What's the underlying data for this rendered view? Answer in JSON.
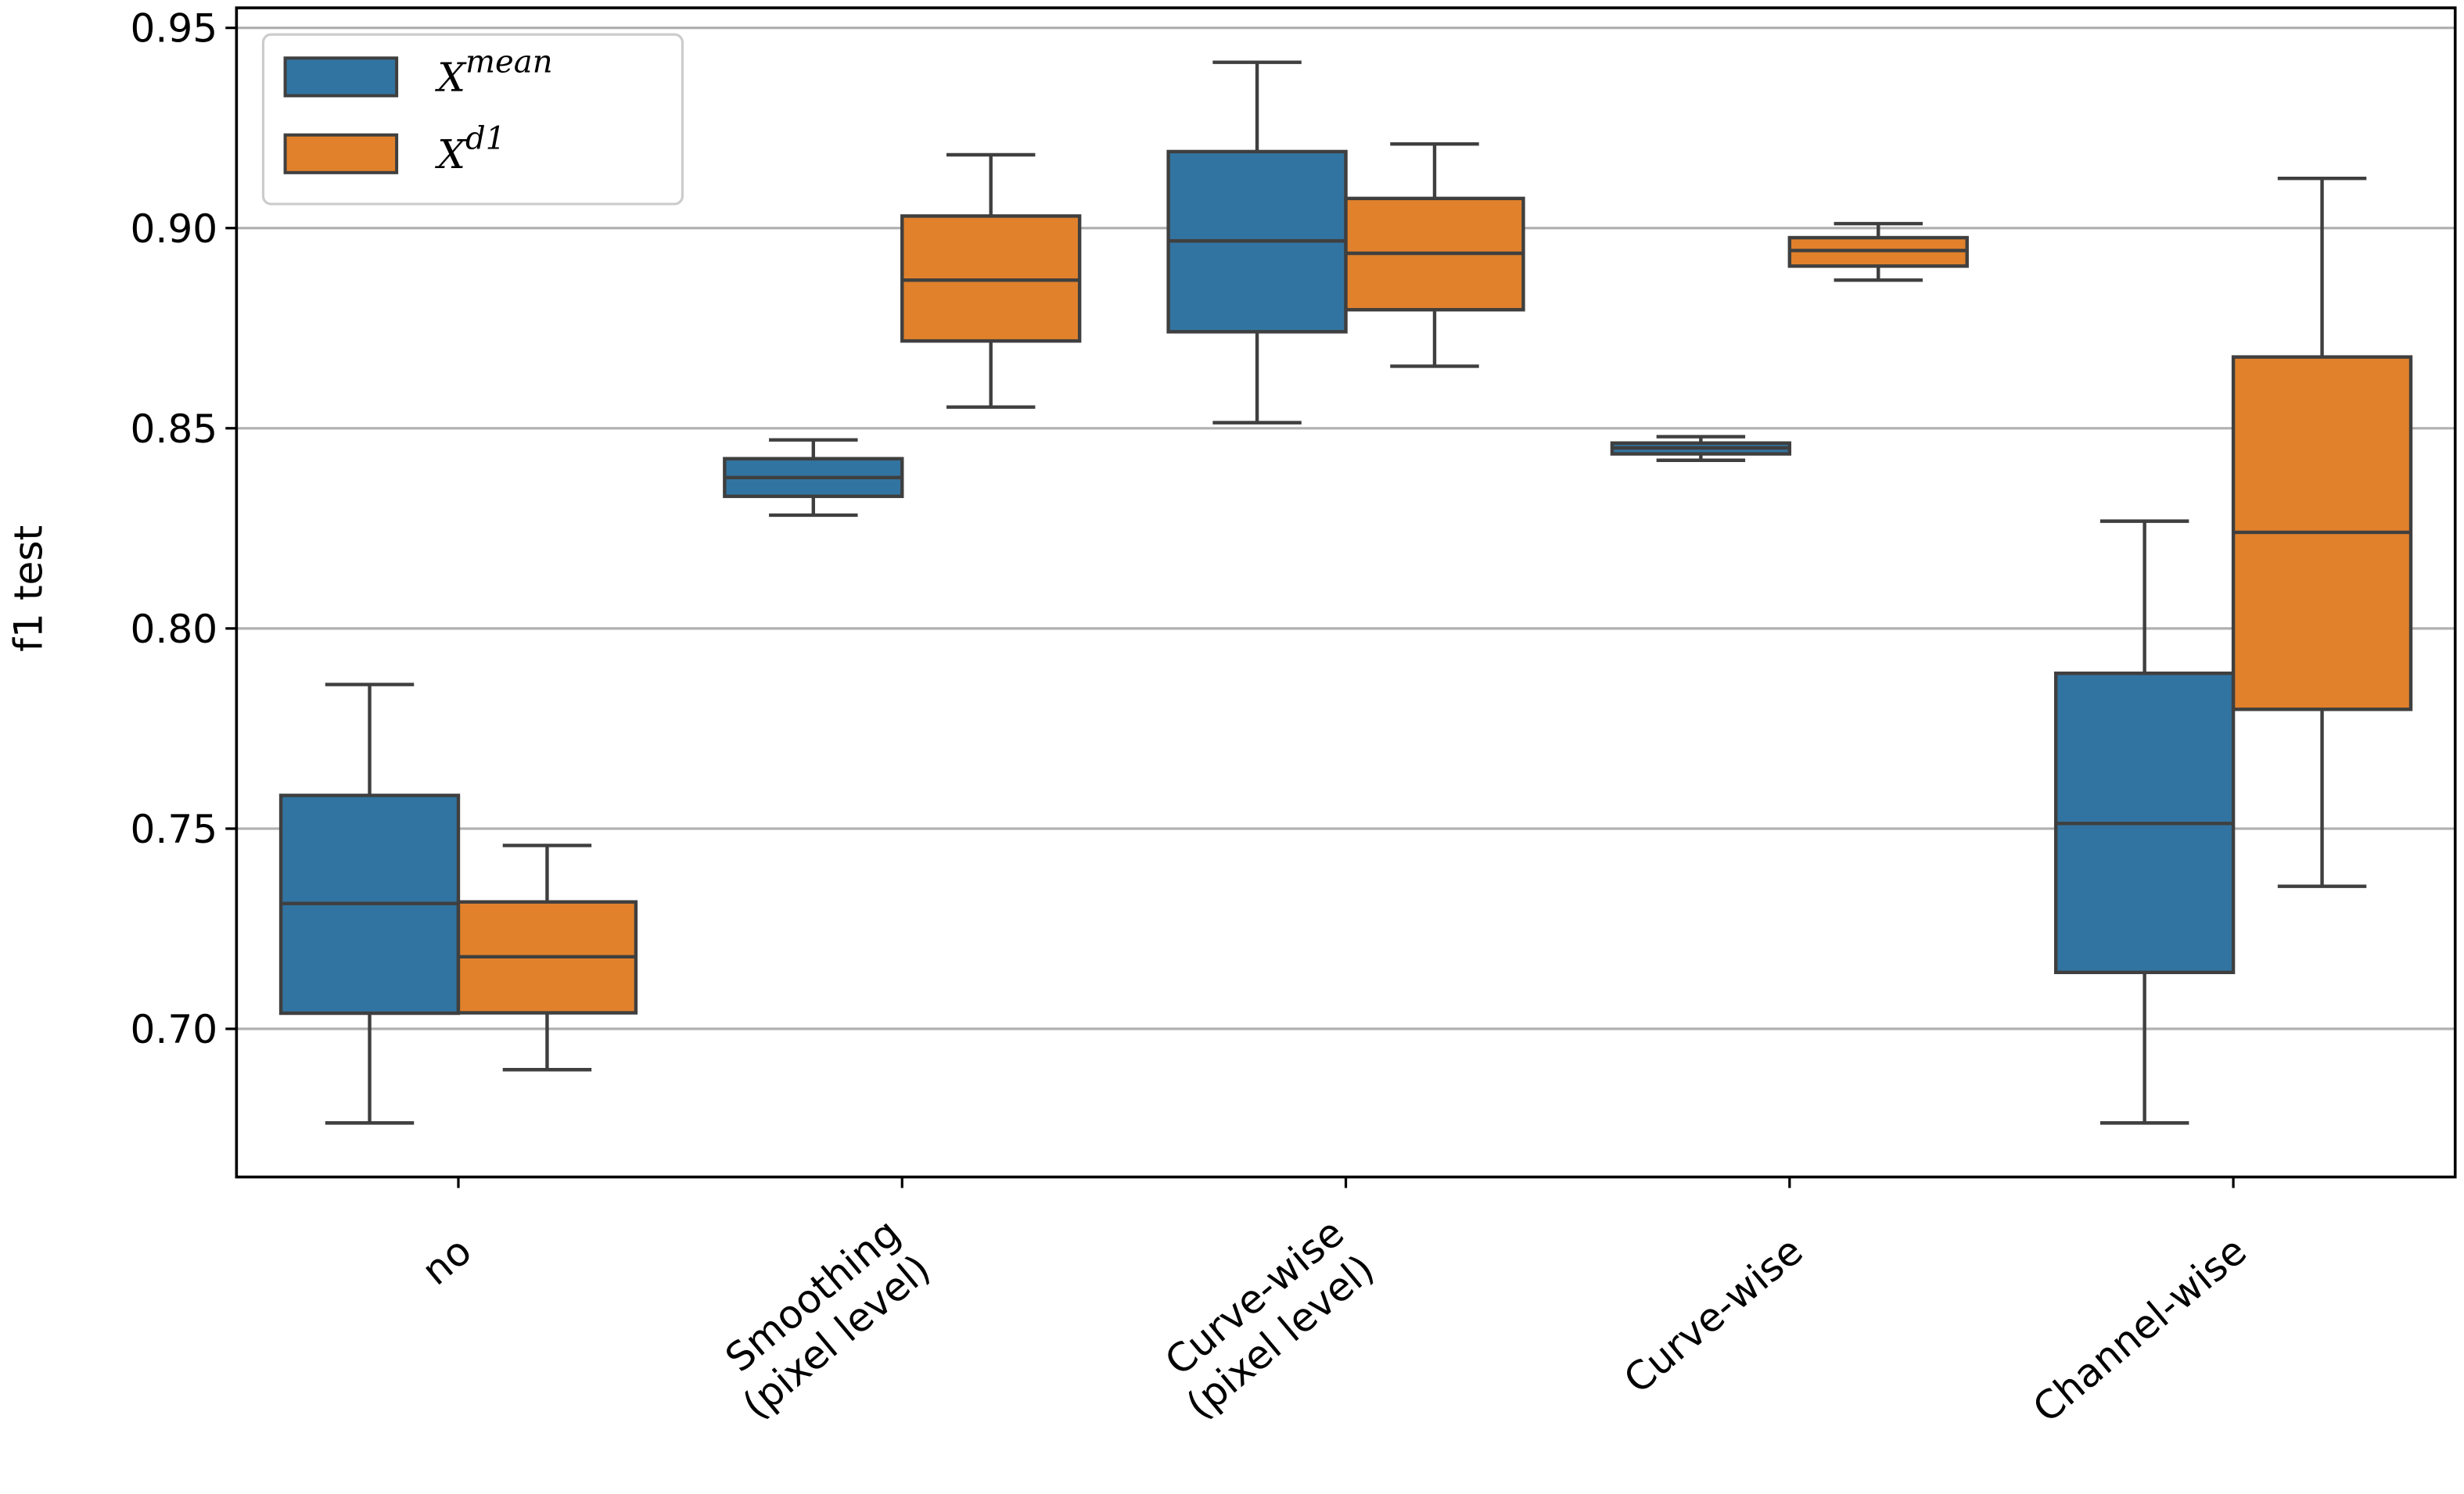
{
  "chart_data": {
    "type": "box",
    "y_label": "f1 test",
    "categories": [
      [
        "no"
      ],
      [
        "Smoothing",
        "(pixel level)"
      ],
      [
        "Curve-wise",
        "(pixel level)"
      ],
      [
        "Curve-wise"
      ],
      [
        "Channel-wise"
      ]
    ],
    "ylim": [
      0.663,
      0.955
    ],
    "yticks": [
      {
        "value": 0.7,
        "label": "0.70"
      },
      0.75,
      {
        "value": 0.8,
        "label": "0.80"
      },
      0.85,
      {
        "value": 0.9,
        "label": "0.90"
      },
      0.95
    ],
    "grid": true,
    "legend_position": "upper left",
    "series": [
      {
        "name": "X",
        "name_superscript": "mean",
        "color": "#3274a1",
        "whislo": [
          0.6765,
          0.8283,
          0.8514,
          0.842,
          0.6765
        ],
        "q1": [
          0.7039,
          0.833,
          0.8741,
          0.8436,
          0.7141
        ],
        "median": [
          0.7313,
          0.8377,
          0.8968,
          0.8451,
          0.7513
        ],
        "q3": [
          0.7583,
          0.8424,
          0.9191,
          0.8463,
          0.7888
        ],
        "whishi": [
          0.786,
          0.8471,
          0.9414,
          0.8479,
          0.8268
        ]
      },
      {
        "name": "X",
        "name_superscript": "d1",
        "color": "#e1812c",
        "whislo": [
          0.6898,
          0.8553,
          0.8655,
          0.887,
          0.7356
        ],
        "q1": [
          0.704,
          0.8718,
          0.8796,
          0.8905,
          0.7798
        ],
        "median": [
          0.718,
          0.887,
          0.8937,
          0.8944,
          0.824
        ],
        "q3": [
          0.7317,
          0.903,
          0.9074,
          0.8976,
          0.8678
        ],
        "whishi": [
          0.7458,
          0.9183,
          0.921,
          0.9011,
          0.9124
        ]
      }
    ]
  }
}
